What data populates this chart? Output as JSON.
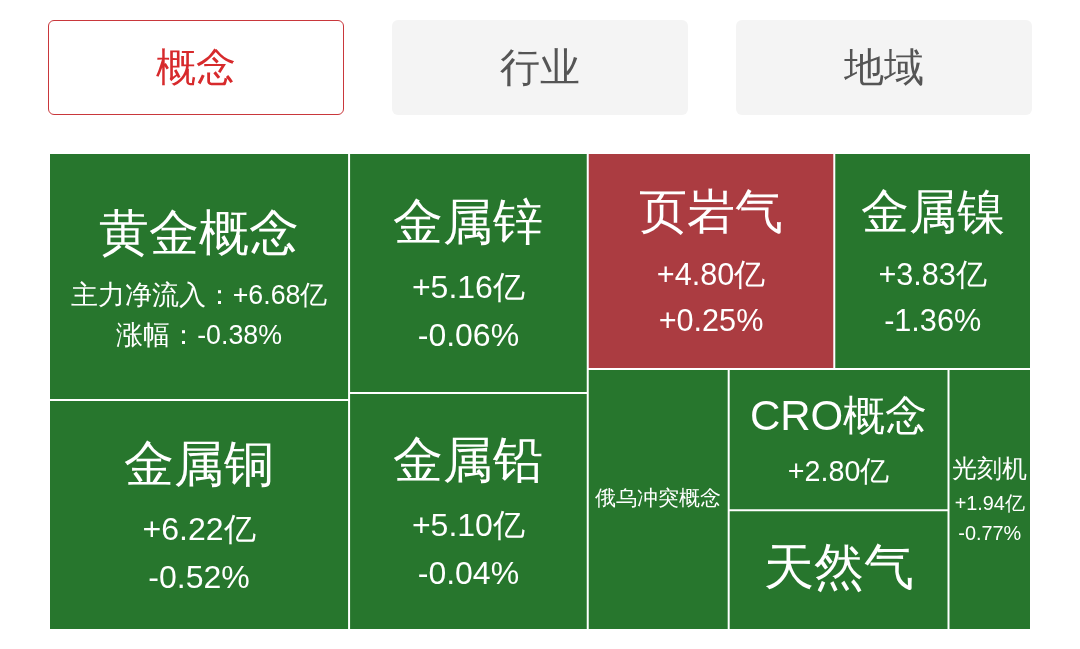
{
  "chart_data": {
    "type": "other",
    "title": "概念",
    "annotations": [
      "行业",
      "地域"
    ],
    "categories": [
      "黄金概念",
      "金属铜",
      "金属锌",
      "金属铅",
      "页岩气",
      "金属镍",
      "俄乌冲突概念",
      "CRO概念",
      "天然气",
      "光刻机"
    ],
    "series": [
      {
        "values": [
          6.68,
          6.22,
          5.16,
          5.1,
          4.8,
          3.83,
          null,
          2.8,
          null,
          1.94
        ],
        "value_labels": [
          "主力净流入：+6.68亿",
          "+6.22亿",
          "+5.16亿",
          "+5.10亿",
          "+4.80亿",
          "+3.83亿",
          null,
          "+2.80亿",
          null,
          "+1.94亿"
        ],
        "colors": [
          "#27762d",
          "#27762d",
          "#27762d",
          "#27762d",
          "#ab3c41",
          "#27762d",
          "#27762d",
          "#27762d",
          "#27762d",
          "#27762d"
        ]
      },
      {
        "values": [
          -0.38,
          -0.52,
          -0.06,
          -0.04,
          0.25,
          -1.36,
          null,
          null,
          null,
          -0.77
        ],
        "value_labels": [
          "涨幅：-0.38%",
          "-0.52%",
          "-0.06%",
          "-0.04%",
          "+0.25%",
          "-1.36%",
          null,
          null,
          null,
          "-0.77%"
        ]
      }
    ]
  }
}
